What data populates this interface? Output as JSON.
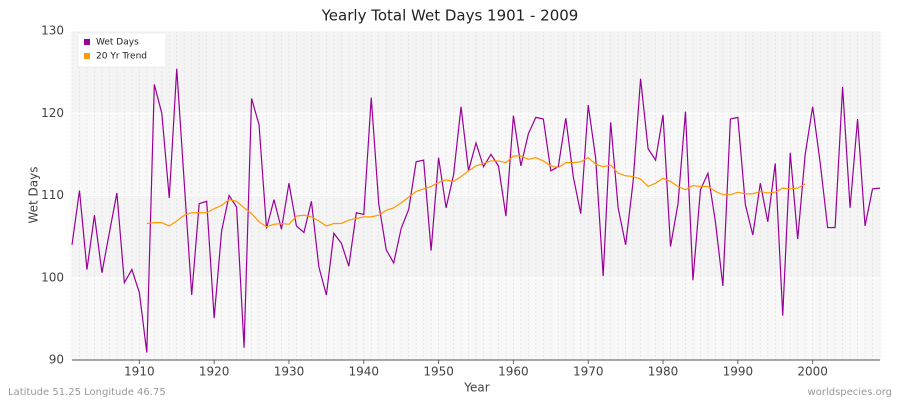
{
  "chart_data": {
    "type": "line",
    "title": "Yearly Total Wet Days 1901 - 2009",
    "x_label": "Year",
    "y_label": "Wet Days",
    "footer_left": "Latitude 51.25 Longitude 46.75",
    "footer_right": "worldspecies.org",
    "legend": "upper left",
    "grid": true,
    "xlim": [
      1901,
      2009
    ],
    "xticks": [
      1910,
      1920,
      1930,
      1940,
      1950,
      1960,
      1970,
      1980,
      1990,
      2000
    ],
    "ylim": [
      90,
      130
    ],
    "yticks": [
      90,
      100,
      110,
      120,
      130
    ],
    "x": [
      1901,
      1902,
      1903,
      1904,
      1905,
      1906,
      1907,
      1908,
      1909,
      1910,
      1911,
      1912,
      1913,
      1914,
      1915,
      1916,
      1917,
      1918,
      1919,
      1920,
      1921,
      1922,
      1923,
      1924,
      1925,
      1926,
      1927,
      1928,
      1929,
      1930,
      1931,
      1932,
      1933,
      1934,
      1935,
      1936,
      1937,
      1938,
      1939,
      1940,
      1941,
      1942,
      1943,
      1944,
      1945,
      1946,
      1947,
      1948,
      1949,
      1950,
      1951,
      1952,
      1953,
      1954,
      1955,
      1956,
      1957,
      1958,
      1959,
      1960,
      1961,
      1962,
      1963,
      1964,
      1965,
      1966,
      1967,
      1968,
      1969,
      1970,
      1971,
      1972,
      1973,
      1974,
      1975,
      1976,
      1977,
      1978,
      1979,
      1980,
      1981,
      1982,
      1983,
      1984,
      1985,
      1986,
      1987,
      1988,
      1989,
      1990,
      1991,
      1992,
      1993,
      1994,
      1995,
      1996,
      1997,
      1998,
      1999,
      2000,
      2001,
      2002,
      2003,
      2004,
      2005,
      2006,
      2007,
      2008,
      2009
    ],
    "series": [
      {
        "name": "Wet Days",
        "color": "#990099",
        "values": [
          104,
          110.6,
          101,
          107.6,
          100.6,
          105.5,
          110.3,
          99.4,
          101,
          98.2,
          90.9,
          123.5,
          120,
          109.7,
          125.4,
          111.6,
          97.9,
          109,
          109.3,
          95.1,
          105.7,
          110,
          108.6,
          91.5,
          121.8,
          118.6,
          106,
          109.5,
          105.9,
          111.5,
          106.3,
          105.5,
          109.3,
          101.3,
          97.9,
          105.4,
          104.2,
          101.4,
          107.9,
          107.7,
          121.9,
          109,
          103.4,
          101.8,
          106,
          108.3,
          114.1,
          114.3,
          103.3,
          114.6,
          108.5,
          112.5,
          120.8,
          113,
          116.4,
          113.5,
          115,
          113.6,
          107.5,
          119.7,
          113.6,
          117.5,
          119.5,
          119.3,
          113,
          113.5,
          119.4,
          112.3,
          107.8,
          121,
          114.5,
          100.2,
          118.9,
          108.5,
          104,
          111.7,
          124.2,
          115.7,
          114.3,
          119.8,
          103.8,
          109,
          120.2,
          99.7,
          110.7,
          112.7,
          106.8,
          99,
          119.3,
          119.5,
          108.9,
          105.2,
          111.5,
          106.8,
          113.9,
          95.4,
          115.2,
          104.7,
          115,
          120.8,
          114,
          106.1,
          106.1,
          123.2,
          108.5,
          119.3,
          106.3,
          110.8,
          110.9
        ]
      },
      {
        "name": "20 Yr Trend",
        "color": "#ff9900",
        "values": [
          null,
          null,
          null,
          null,
          null,
          null,
          null,
          null,
          null,
          null,
          106.6,
          106.7,
          106.7,
          106.3,
          106.9,
          107.6,
          107.9,
          107.9,
          107.9,
          108.4,
          108.8,
          109.5,
          109.3,
          108.5,
          107.8,
          106.8,
          106.2,
          106.5,
          106.6,
          106.5,
          107.5,
          107.6,
          107.4,
          106.9,
          106.3,
          106.6,
          106.6,
          107,
          107.2,
          107.4,
          107.4,
          107.6,
          108.2,
          108.5,
          109.1,
          109.8,
          110.5,
          110.8,
          111.1,
          111.6,
          111.9,
          111.7,
          112.3,
          113,
          113.6,
          113.9,
          114.2,
          114.2,
          114,
          114.8,
          114.8,
          114.4,
          114.6,
          114.2,
          113.6,
          113.4,
          114,
          114,
          114.1,
          114.6,
          113.8,
          113.5,
          113.7,
          112.7,
          112.4,
          112.3,
          112,
          111.1,
          111.5,
          112.1,
          111.7,
          111.1,
          110.7,
          111.2,
          111.1,
          111.1,
          110.5,
          110.1,
          110.1,
          110.4,
          110.2,
          110.2,
          110.5,
          110.3,
          110.4,
          110.9,
          110.8,
          110.9,
          111.4,
          null,
          null,
          null,
          null,
          null,
          null,
          null,
          null,
          null,
          null
        ]
      }
    ]
  }
}
